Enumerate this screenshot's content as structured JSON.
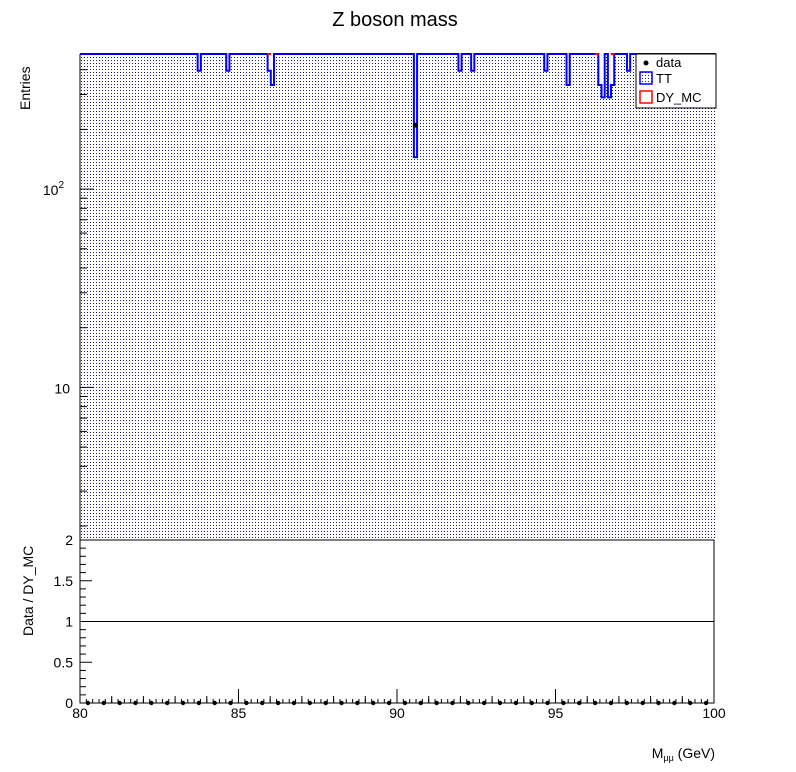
{
  "chart_data": [
    {
      "type": "bar",
      "title": "Z boson mass",
      "xlabel": "",
      "ylabel": "Entries",
      "y_scale": "log",
      "xlim": [
        80,
        100
      ],
      "ylim": [
        1.7,
        480
      ],
      "y_tick_labels": [
        {
          "value": 10,
          "label": "10"
        },
        {
          "value": 100,
          "label": "10",
          "sup": "2"
        }
      ],
      "legend": {
        "position": "top-right",
        "entries": [
          "data",
          "TT",
          "DY_MC"
        ]
      },
      "bin_width": 0.1,
      "series": [
        {
          "name": "TT",
          "color": "#0000ff",
          "fill_pattern": "dots",
          "default_value": 480,
          "dips": [
            {
              "x": 83.7,
              "value": 395
            },
            {
              "x": 84.6,
              "value": 395
            },
            {
              "x": 85.9,
              "value": 395
            },
            {
              "x": 86.0,
              "value": 335
            },
            {
              "x": 90.5,
              "value": 145
            },
            {
              "x": 91.9,
              "value": 395
            },
            {
              "x": 92.3,
              "value": 395
            },
            {
              "x": 94.6,
              "value": 395
            },
            {
              "x": 95.3,
              "value": 335
            },
            {
              "x": 96.3,
              "value": 335
            },
            {
              "x": 96.4,
              "value": 290
            },
            {
              "x": 96.6,
              "value": 290
            },
            {
              "x": 96.7,
              "value": 335
            },
            {
              "x": 97.2,
              "value": 395
            }
          ]
        },
        {
          "name": "DY_MC",
          "color": "#ff0000",
          "note": "",
          "default_value": 480
        },
        {
          "name": "data",
          "color": "#000000",
          "points": [
            {
              "x": 90.55,
              "value": 210
            }
          ]
        }
      ]
    },
    {
      "type": "scatter",
      "title": "",
      "xlabel": "M_μμ (GeV)",
      "xlabel_main": "M",
      "xlabel_sub": "μμ",
      "xlabel_unit": " (GeV)",
      "ylabel": "Data / DY_MC",
      "xlim": [
        80,
        100
      ],
      "ylim": [
        0,
        2
      ],
      "x_ticks": [
        80,
        85,
        90,
        95,
        100
      ],
      "y_ticks": [
        0,
        0.5,
        1,
        1.5,
        2
      ],
      "reference_line": 1,
      "ratio_value": 0,
      "ratio_points_x_start": 80.25,
      "ratio_points_x_step": 0.5,
      "ratio_points_count": 40
    }
  ]
}
